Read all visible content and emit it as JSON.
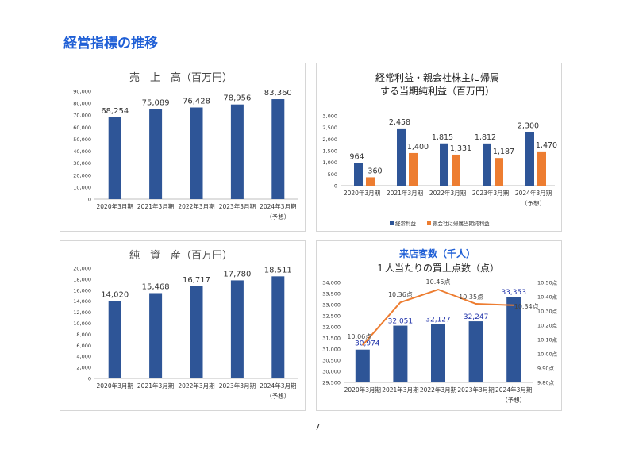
{
  "page": {
    "title": "経営指標の推移",
    "page_number": "7"
  },
  "colors": {
    "title": "#1f5fd6",
    "bar_blue": "#2e5597",
    "bar_orange": "#ed7d31",
    "line_orange": "#ed7d31",
    "customer_label": "#1c2fa8"
  },
  "chart_data": [
    {
      "type": "bar",
      "title": "売　上　高（百万円）",
      "categories": [
        "2020年3月期",
        "2021年3月期",
        "2022年3月期",
        "2023年3月期",
        "2024年3月期"
      ],
      "category_note": "（予想）",
      "values": [
        68254,
        75089,
        76428,
        78956,
        83360
      ],
      "value_labels": [
        "68,254",
        "75,089",
        "76,428",
        "78,956",
        "83,360"
      ],
      "ylim": [
        0,
        90000
      ],
      "yticks": [
        "0",
        "10,000",
        "20,000",
        "30,000",
        "40,000",
        "50,000",
        "60,000",
        "70,000",
        "80,000",
        "90,000"
      ]
    },
    {
      "type": "bar",
      "title_lines": [
        "経常利益・親会社株主に帰属",
        "する当期純利益（百万円）"
      ],
      "categories": [
        "2020年3月期",
        "2021年3月期",
        "2022年3月期",
        "2023年3月期",
        "2024年3月期"
      ],
      "category_note": "（予想）",
      "series": [
        {
          "name": "経常利益",
          "values": [
            964,
            2458,
            1815,
            1812,
            2300
          ],
          "labels": [
            "964",
            "2,458",
            "1,815",
            "1,812",
            "2,300"
          ]
        },
        {
          "name": "親会社に帰属当期純利益",
          "values": [
            360,
            1400,
            1331,
            1187,
            1470
          ],
          "labels": [
            "360",
            "1,400",
            "1,331",
            "1,187",
            "1,470"
          ]
        }
      ],
      "ylim": [
        0,
        3000
      ],
      "yticks": [
        "0",
        "500",
        "1,000",
        "1,500",
        "2,000",
        "2,500",
        "3,000"
      ],
      "legend_position": "bottom"
    },
    {
      "type": "bar",
      "title": "純　資　産（百万円）",
      "categories": [
        "2020年3月期",
        "2021年3月期",
        "2022年3月期",
        "2023年3月期",
        "2024年3月期"
      ],
      "category_note": "（予想）",
      "values": [
        14020,
        15468,
        16717,
        17780,
        18511
      ],
      "value_labels": [
        "14,020",
        "15,468",
        "16,717",
        "17,780",
        "18,511"
      ],
      "ylim": [
        0,
        20000
      ],
      "yticks": [
        "0",
        "2,000",
        "4,000",
        "6,000",
        "8,000",
        "10,000",
        "12,000",
        "14,000",
        "16,000",
        "18,000",
        "20,000"
      ]
    },
    {
      "type": "bar+line",
      "title_lines": [
        "来店客数（千人）",
        "１人当たりの買上点数（点）"
      ],
      "categories": [
        "2020年3月期",
        "2021年3月期",
        "2022年3月期",
        "2023年3月期",
        "2024年3月期"
      ],
      "category_note": "（予想）",
      "bars": {
        "values": [
          30974,
          32051,
          32127,
          32247,
          33353
        ],
        "labels": [
          "30,974",
          "32,051",
          "32,127",
          "32,247",
          "33,353"
        ]
      },
      "line": {
        "values": [
          10.06,
          10.36,
          10.45,
          10.35,
          10.34
        ],
        "labels": [
          "10.06点",
          "10.36点",
          "10.45点",
          "10.35点",
          "10.34点"
        ]
      },
      "ylim": [
        29500,
        34000
      ],
      "yticks": [
        "29,500",
        "30,000",
        "30,500",
        "31,000",
        "31,500",
        "32,000",
        "32,500",
        "33,000",
        "33,500",
        "34,000"
      ],
      "y2lim": [
        9.8,
        10.5
      ],
      "y2ticks": [
        "9.80点",
        "9.90点",
        "10.00点",
        "10.10点",
        "10.20点",
        "10.30点",
        "10.40点",
        "10.50点"
      ]
    }
  ]
}
